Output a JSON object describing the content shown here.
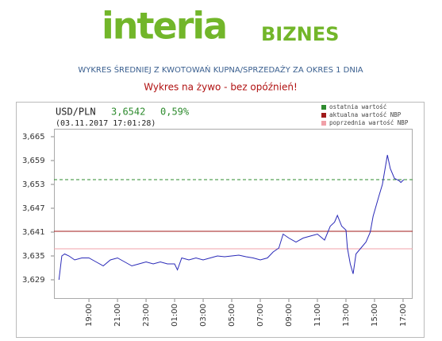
{
  "header": {
    "logo": "interia",
    "logo_section": "BIZNES",
    "subtitle": "WYKRES ŚREDNIEJ Z KWOTOWAŃ KUPNA/SPRZEDAŻY ZA OKRES 1 DNIA",
    "notice": "Wykres na żywo - bez opóźnień!"
  },
  "chart_data": {
    "type": "line",
    "title": "USD/PLN",
    "quote": "3,6542",
    "change": "0,59%",
    "timestamp": "(03.11.2017 17:01:28)",
    "x": [
      16.9,
      17.1,
      17.3,
      17.6,
      18.0,
      18.5,
      19.0,
      19.5,
      20.0,
      20.5,
      21.0,
      21.5,
      22.0,
      22.5,
      23.0,
      23.5,
      24.0,
      24.5,
      25.0,
      25.2,
      25.5,
      26.0,
      26.5,
      27.0,
      27.5,
      28.0,
      28.5,
      29.0,
      29.5,
      30.0,
      30.5,
      31.0,
      31.5,
      31.9,
      32.3,
      32.6,
      33.0,
      33.5,
      34.0,
      34.5,
      35.0,
      35.5,
      35.9,
      36.2,
      36.4,
      36.7,
      37.0,
      37.1,
      37.3,
      37.5,
      37.7,
      38.05,
      38.4,
      38.7,
      38.9,
      39.3,
      39.55,
      39.9,
      40.1,
      40.4,
      40.7,
      40.85,
      41.05
    ],
    "series": [
      {
        "name": "USD/PLN",
        "color": "#2a2ab8",
        "values": [
          3.629,
          3.635,
          3.6355,
          3.635,
          3.634,
          3.6345,
          3.6345,
          3.6335,
          3.6325,
          3.634,
          3.6345,
          3.6335,
          3.6325,
          3.633,
          3.6335,
          3.633,
          3.6335,
          3.633,
          3.633,
          3.6315,
          3.6345,
          3.634,
          3.6345,
          3.634,
          3.6345,
          3.635,
          3.6348,
          3.635,
          3.6352,
          3.6348,
          3.6345,
          3.634,
          3.6345,
          3.636,
          3.637,
          3.6405,
          3.6395,
          3.6385,
          3.6395,
          3.64,
          3.6405,
          3.639,
          3.6425,
          3.6435,
          3.6452,
          3.6425,
          3.6415,
          3.637,
          3.633,
          3.6305,
          3.6355,
          3.637,
          3.6385,
          3.641,
          3.645,
          3.65,
          3.653,
          3.6604,
          3.657,
          3.6545,
          3.654,
          3.6535,
          3.6542
        ]
      }
    ],
    "reference_lines": [
      {
        "name": "ostatnia wartość",
        "color": "#2e8b2e",
        "value": 3.6542,
        "dashed": true
      },
      {
        "name": "aktualna wartość NBP",
        "color": "#a01a1a",
        "value": 3.6412,
        "dashed": false
      },
      {
        "name": "poprzednia wartość NBP",
        "color": "#f0a0a8",
        "value": 3.6368,
        "dashed": false
      }
    ],
    "xlim": [
      16.55,
      41.67
    ],
    "xticks": [
      {
        "value": 19,
        "label": "19:00"
      },
      {
        "value": 21,
        "label": "21:00"
      },
      {
        "value": 23,
        "label": "23:00"
      },
      {
        "value": 25,
        "label": "01:00"
      },
      {
        "value": 27,
        "label": "03:00"
      },
      {
        "value": 29,
        "label": "05:00"
      },
      {
        "value": 31,
        "label": "07:00"
      },
      {
        "value": 33,
        "label": "09:00"
      },
      {
        "value": 35,
        "label": "11:00"
      },
      {
        "value": 37,
        "label": "13:00"
      },
      {
        "value": 39,
        "label": "15:00"
      },
      {
        "value": 41,
        "label": "17:00"
      }
    ],
    "ylim": [
      3.6242,
      3.667
    ],
    "yticks": [
      {
        "value": 3.629,
        "label": "3,629"
      },
      {
        "value": 3.635,
        "label": "3,635"
      },
      {
        "value": 3.641,
        "label": "3,641"
      },
      {
        "value": 3.647,
        "label": "3,647"
      },
      {
        "value": 3.653,
        "label": "3,653"
      },
      {
        "value": 3.659,
        "label": "3,659"
      },
      {
        "value": 3.665,
        "label": "3,665"
      }
    ]
  }
}
